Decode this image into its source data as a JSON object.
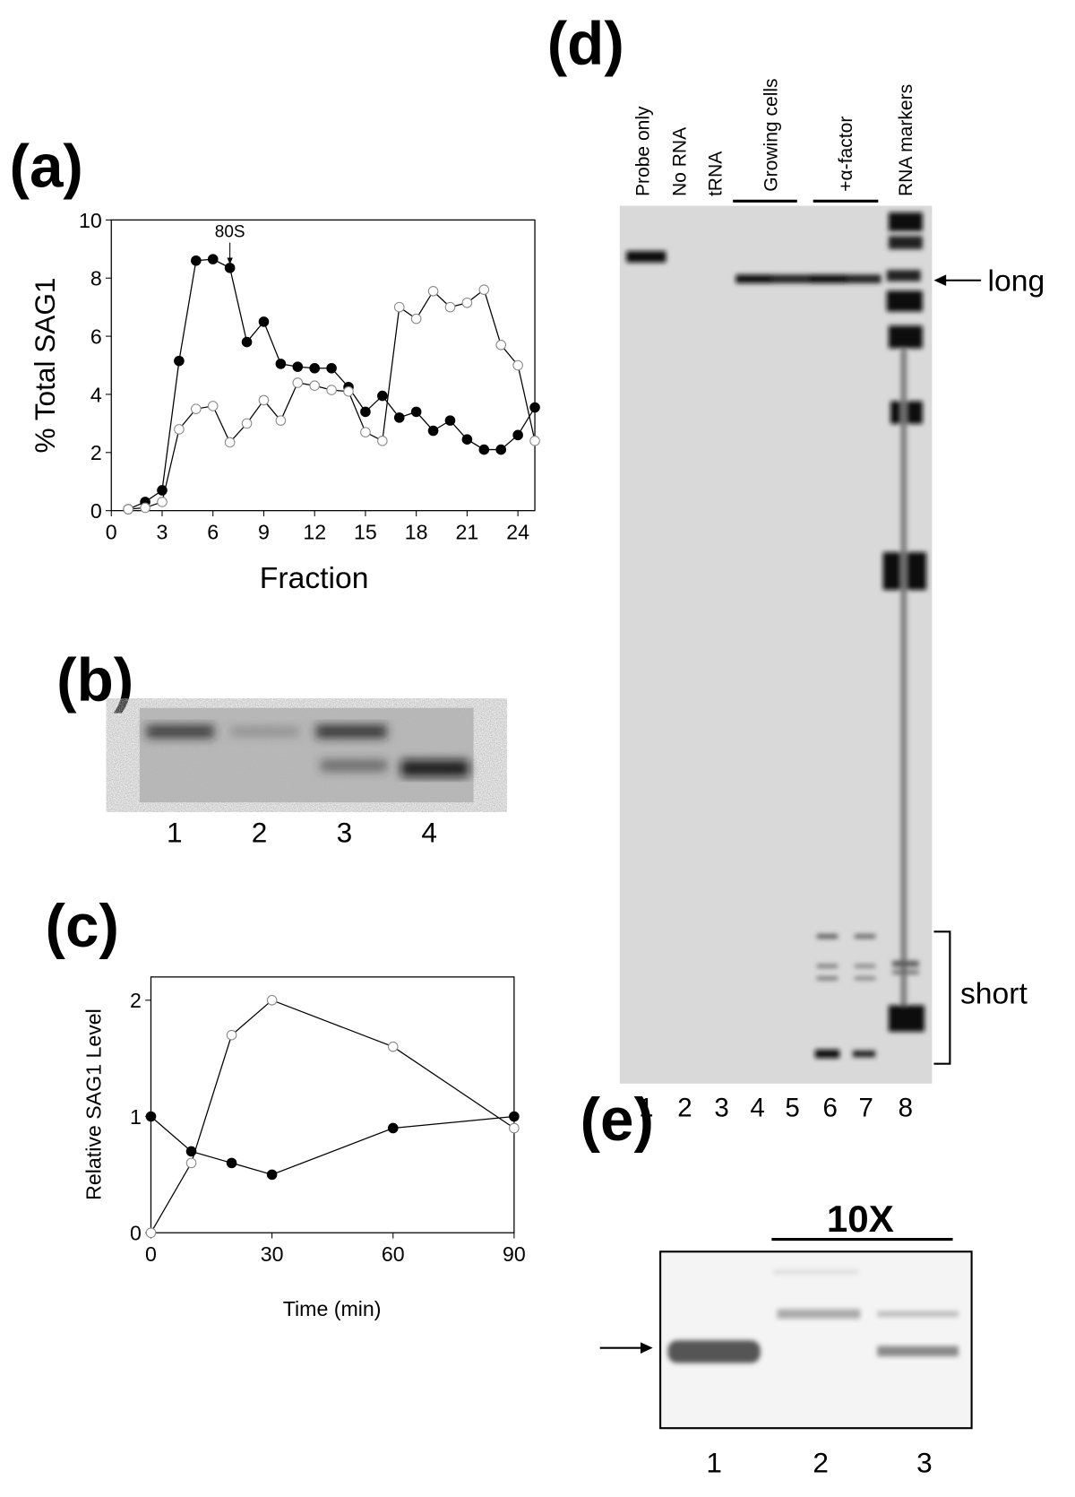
{
  "chart_data": [
    {
      "type": "line",
      "ylabel": "% Total SAG1",
      "xlabel": "Fraction",
      "annotation": "80S",
      "x": [
        1,
        2,
        3,
        4,
        5,
        6,
        7,
        8,
        9,
        10,
        11,
        12,
        13,
        14,
        15,
        16,
        17,
        18,
        19,
        20,
        21,
        22,
        23,
        24,
        25
      ],
      "series": [
        {
          "color": "#000000",
          "values": [
            0.05,
            0.3,
            0.7,
            5.15,
            8.6,
            8.65,
            8.35,
            5.8,
            6.5,
            5.05,
            4.95,
            4.9,
            4.9,
            4.25,
            3.4,
            3.95,
            3.2,
            3.4,
            2.75,
            3.1,
            2.45,
            2.1,
            2.1,
            2.6,
            3.55
          ]
        },
        {
          "color": "#ffffff",
          "values": [
            0.05,
            0.1,
            0.3,
            2.8,
            3.5,
            3.6,
            2.35,
            3.0,
            3.8,
            3.1,
            4.4,
            4.3,
            4.15,
            4.1,
            2.7,
            2.4,
            7.0,
            6.6,
            7.55,
            7.0,
            7.15,
            7.6,
            5.7,
            5.0,
            2.4
          ]
        }
      ],
      "xlim": [
        0,
        25
      ],
      "ylim": [
        0,
        10
      ],
      "xticks": [
        0,
        3,
        6,
        9,
        12,
        15,
        18,
        21,
        24
      ],
      "yticks": [
        0,
        2,
        4,
        6,
        8,
        10
      ]
    },
    {
      "type": "line",
      "ylabel": "Relative SAG1 Level",
      "xlabel": "Time (min)",
      "x": [
        0,
        10,
        20,
        30,
        60,
        90
      ],
      "series": [
        {
          "color": "#000000",
          "values": [
            1,
            0.7,
            0.6,
            0.5,
            0.9,
            1.0
          ]
        },
        {
          "color": "#ffffff",
          "values": [
            0,
            0.6,
            1.7,
            2.0,
            1.6,
            0.9
          ]
        }
      ],
      "xlim": [
        0,
        90
      ],
      "ylim": [
        0,
        2.2
      ],
      "xticks": [
        0,
        30,
        60,
        90
      ],
      "yticks": [
        0,
        1,
        2
      ]
    }
  ],
  "panel_labels": [
    "(a)",
    "(b)",
    "(c)",
    "(d)",
    "(e)"
  ],
  "gel_b": {
    "lanes": [
      "1",
      "2",
      "3",
      "4"
    ]
  },
  "gel_d": {
    "columns": [
      "Probe only",
      "No RNA",
      "tRNA",
      "Growing cells",
      "+α-factor",
      "RNA markers"
    ],
    "lanes": [
      "1",
      "2",
      "3",
      "4",
      "5",
      "6",
      "7",
      "8"
    ],
    "long": "long",
    "short": "short"
  },
  "gel_e": {
    "header": "10X",
    "lanes": [
      "1",
      "2",
      "3"
    ]
  }
}
